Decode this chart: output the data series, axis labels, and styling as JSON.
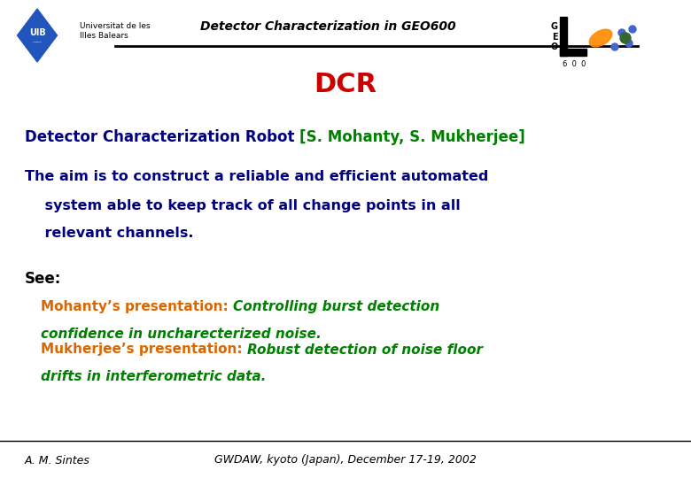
{
  "bg_color": "#ffffff",
  "title_text": "DCR",
  "title_color": "#cc0000",
  "title_fontsize": 22,
  "header_center_text": "Detector Characterization in GEO600",
  "header_fontsize": 10,
  "line1_text": "Detector Characterization Robot ",
  "line1_bracket": "[S. Mohanty, S. Mukherjee]",
  "line1_color": "#000080",
  "line1_bracket_color": "#008000",
  "line1_fontsize": 12,
  "body_lines": [
    "The aim is to construct a reliable and efficient automated",
    "    system able to keep track of all change points in all",
    "    relevant channels."
  ],
  "body_color": "#000080",
  "body_fontsize": 11.5,
  "see_text": "See:",
  "see_color": "#000000",
  "see_fontsize": 12,
  "pres1_label": "Mohanty’s presentation: ",
  "pres1_label_color": "#dd6600",
  "pres1_line1_green": "Controlling burst detection",
  "pres1_line2_green": "confidence in uncharecterized noise.",
  "pres1_color": "#008000",
  "pres1_fontsize": 11,
  "pres2_label": "Mukherjee’s presentation: ",
  "pres2_label_color": "#dd6600",
  "pres2_line1_green": "Robust detection of noise floor",
  "pres2_line2_green": "drifts in interferometric data.",
  "pres2_color": "#008000",
  "pres2_fontsize": 11,
  "footer_left": "A. M. Sintes",
  "footer_center": "GWDAW, kyoto (Japan), December 17-19, 2002",
  "footer_fontsize": 9
}
